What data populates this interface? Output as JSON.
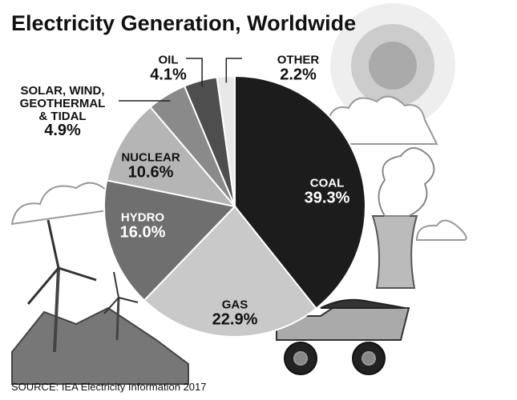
{
  "chart_data": {
    "type": "pie",
    "title": "Electricity Generation, Worldwide",
    "categories": [
      "COAL",
      "GAS",
      "HYDRO",
      "NUCLEAR",
      "SOLAR, WIND, GEOTHERMAL & TIDAL",
      "OIL",
      "OTHER"
    ],
    "values": [
      39.3,
      22.9,
      16.0,
      10.6,
      4.9,
      4.1,
      2.2
    ],
    "value_labels": [
      "39.3%",
      "22.9%",
      "16.0%",
      "10.6%",
      "4.9%",
      "4.1%",
      "2.2%"
    ],
    "colors": [
      "#1c1c1c",
      "#c9c9c9",
      "#6f6f6f",
      "#b5b5b5",
      "#8a8a8a",
      "#4e4e4e",
      "#e8e8e8"
    ],
    "source": "SOURCE: IEA Electricity Information 2017"
  }
}
